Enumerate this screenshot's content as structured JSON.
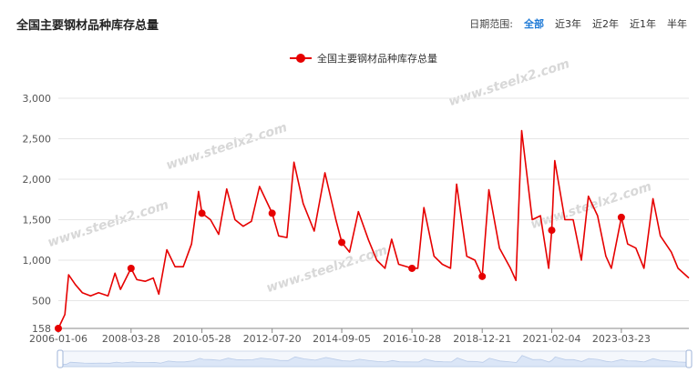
{
  "header": {
    "title": "全国主要钢材品种库存总量",
    "range_label": "日期范围:",
    "range_options": [
      "全部",
      "近3年",
      "近2年",
      "近1年",
      "半年"
    ],
    "active_range": "全部"
  },
  "watermark_text": "www.steelx2.com",
  "colors": {
    "series": "#e60000",
    "active": "#1f7ad6",
    "grid": "#e6e6e6",
    "slider": "#dbe6f7"
  },
  "chart_data": {
    "type": "line",
    "title": "全国主要钢材品种库存总量",
    "x_range": [
      "2006-01-06",
      "2025-04-15"
    ],
    "ylim": [
      158,
      3000
    ],
    "y_ticks": [
      3000,
      2500,
      2000,
      1500,
      1000,
      500,
      158
    ],
    "y_tick_labels": [
      "3,000",
      "2,500",
      "2,000",
      "1,500",
      "1,000",
      "500",
      "158"
    ],
    "x_ticks": [
      "2006-01-06",
      "2008-03-28",
      "2010-05-28",
      "2012-07-20",
      "2014-09-05",
      "2016-10-28",
      "2018-12-21",
      "2021-02-04",
      "2023-03-23"
    ],
    "grid": true,
    "legend": "top-center",
    "series": [
      {
        "name": "全国主要钢材品种库存总量",
        "points": [
          [
            "2006-01-06",
            158
          ],
          [
            "2006-03-20",
            330
          ],
          [
            "2006-05-01",
            820
          ],
          [
            "2006-07-15",
            700
          ],
          [
            "2006-10-01",
            600
          ],
          [
            "2007-01-01",
            560
          ],
          [
            "2007-04-01",
            600
          ],
          [
            "2007-07-15",
            560
          ],
          [
            "2007-10-01",
            840
          ],
          [
            "2007-12-01",
            640
          ],
          [
            "2008-03-28",
            900
          ],
          [
            "2008-06-01",
            760
          ],
          [
            "2008-09-01",
            740
          ],
          [
            "2008-12-01",
            780
          ],
          [
            "2009-02-01",
            580
          ],
          [
            "2009-05-01",
            1130
          ],
          [
            "2009-08-01",
            920
          ],
          [
            "2009-11-01",
            920
          ],
          [
            "2010-02-01",
            1200
          ],
          [
            "2010-04-20",
            1850
          ],
          [
            "2010-05-28",
            1580
          ],
          [
            "2010-09-01",
            1500
          ],
          [
            "2010-12-01",
            1320
          ],
          [
            "2011-03-01",
            1880
          ],
          [
            "2011-06-01",
            1500
          ],
          [
            "2011-09-01",
            1420
          ],
          [
            "2011-12-01",
            1480
          ],
          [
            "2012-03-01",
            1910
          ],
          [
            "2012-07-20",
            1580
          ],
          [
            "2012-10-01",
            1300
          ],
          [
            "2013-01-01",
            1280
          ],
          [
            "2013-03-20",
            2210
          ],
          [
            "2013-07-01",
            1700
          ],
          [
            "2013-11-01",
            1360
          ],
          [
            "2014-03-01",
            2080
          ],
          [
            "2014-07-01",
            1500
          ],
          [
            "2014-09-05",
            1220
          ],
          [
            "2014-12-01",
            1100
          ],
          [
            "2015-03-10",
            1600
          ],
          [
            "2015-07-01",
            1250
          ],
          [
            "2015-10-01",
            1000
          ],
          [
            "2016-01-01",
            900
          ],
          [
            "2016-03-15",
            1260
          ],
          [
            "2016-06-01",
            950
          ],
          [
            "2016-10-28",
            900
          ],
          [
            "2017-01-01",
            900
          ],
          [
            "2017-03-10",
            1650
          ],
          [
            "2017-07-01",
            1050
          ],
          [
            "2017-10-01",
            950
          ],
          [
            "2018-01-01",
            900
          ],
          [
            "2018-03-10",
            1940
          ],
          [
            "2018-07-01",
            1050
          ],
          [
            "2018-10-01",
            1000
          ],
          [
            "2018-12-21",
            800
          ],
          [
            "2019-03-05",
            1870
          ],
          [
            "2019-07-01",
            1150
          ],
          [
            "2019-11-01",
            900
          ],
          [
            "2020-01-01",
            750
          ],
          [
            "2020-03-05",
            2600
          ],
          [
            "2020-07-01",
            1500
          ],
          [
            "2020-10-01",
            1550
          ],
          [
            "2021-01-01",
            900
          ],
          [
            "2021-02-04",
            1370
          ],
          [
            "2021-03-10",
            2230
          ],
          [
            "2021-07-01",
            1500
          ],
          [
            "2021-10-01",
            1500
          ],
          [
            "2022-01-01",
            1000
          ],
          [
            "2022-03-20",
            1790
          ],
          [
            "2022-07-01",
            1550
          ],
          [
            "2022-10-01",
            1050
          ],
          [
            "2022-12-01",
            900
          ],
          [
            "2023-03-23",
            1530
          ],
          [
            "2023-06-01",
            1200
          ],
          [
            "2023-09-01",
            1150
          ],
          [
            "2023-12-01",
            900
          ],
          [
            "2024-03-10",
            1760
          ],
          [
            "2024-06-01",
            1300
          ],
          [
            "2024-10-01",
            1100
          ],
          [
            "2024-12-15",
            900
          ],
          [
            "2025-04-15",
            780
          ]
        ],
        "markers": [
          [
            "2006-01-06",
            158
          ],
          [
            "2008-03-28",
            900
          ],
          [
            "2010-05-28",
            1580
          ],
          [
            "2012-07-20",
            1580
          ],
          [
            "2014-09-05",
            1220
          ],
          [
            "2016-10-28",
            900
          ],
          [
            "2018-12-21",
            800
          ],
          [
            "2021-02-04",
            1370
          ],
          [
            "2023-03-23",
            1530
          ]
        ]
      }
    ]
  }
}
